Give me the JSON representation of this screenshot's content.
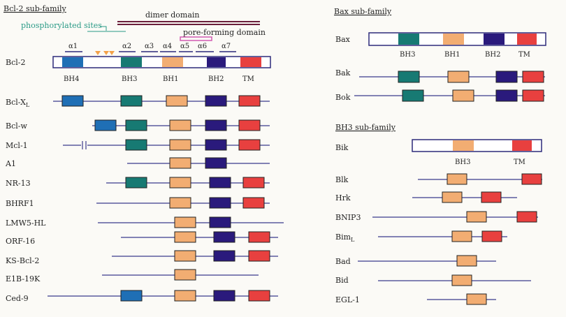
{
  "colors": {
    "BH4": "#1f6fb5",
    "BH3": "#177a73",
    "BH1": "#f2ad72",
    "BH2": "#2a1a7c",
    "TM": "#e8403f",
    "line": "#3b3a8c",
    "dimer": "#6b1f3b",
    "pore": "#d25bb2",
    "phospho": "#2a9a86",
    "triangle": "#f3a24a",
    "alpha_bar": "#2d2a7a"
  },
  "headers": {
    "bcl2": "Bcl-2 sub-family",
    "bax": "Bax sub-family",
    "bh3": "BH3 sub-family"
  },
  "annotations": {
    "dimer": "dimer domain",
    "phospho": "phosphorylated sites",
    "pore": "pore-forming domain"
  },
  "alphas": [
    "α1",
    "α2",
    "α3",
    "α4",
    "α5",
    "α6",
    "α7"
  ],
  "bcl2_domain_labels": [
    "BH4",
    "BH3",
    "BH1",
    "BH2",
    "TM"
  ],
  "bax_domain_labels": [
    "BH3",
    "BH1",
    "BH2",
    "TM"
  ],
  "bik_domain_labels": [
    "BH3",
    "TM"
  ],
  "bcl2_family": [
    {
      "name": "Bcl-2",
      "sub": ""
    },
    {
      "name": "Bcl-X",
      "sub": "L"
    },
    {
      "name": "Bcl-w",
      "sub": ""
    },
    {
      "name": "Mcl-1",
      "sub": ""
    },
    {
      "name": "A1",
      "sub": ""
    },
    {
      "name": "NR-13",
      "sub": ""
    },
    {
      "name": "BHRF1",
      "sub": ""
    },
    {
      "name": "LMW5-HL",
      "sub": ""
    },
    {
      "name": "ORF-16",
      "sub": ""
    },
    {
      "name": "KS-Bcl-2",
      "sub": ""
    },
    {
      "name": "E1B-19K",
      "sub": ""
    },
    {
      "name": "Ced-9",
      "sub": ""
    }
  ],
  "bax_family": [
    {
      "name": "Bax",
      "sub": ""
    },
    {
      "name": "Bak",
      "sub": ""
    },
    {
      "name": "Bok",
      "sub": ""
    }
  ],
  "bh3_family": [
    {
      "name": "Bik",
      "sub": ""
    },
    {
      "name": "Blk",
      "sub": ""
    },
    {
      "name": "Hrk",
      "sub": ""
    },
    {
      "name": "BNIP3",
      "sub": ""
    },
    {
      "name": "Bim",
      "sub": "L"
    },
    {
      "name": "Bad",
      "sub": ""
    },
    {
      "name": "Bid",
      "sub": ""
    },
    {
      "name": "EGL-1",
      "sub": ""
    }
  ]
}
